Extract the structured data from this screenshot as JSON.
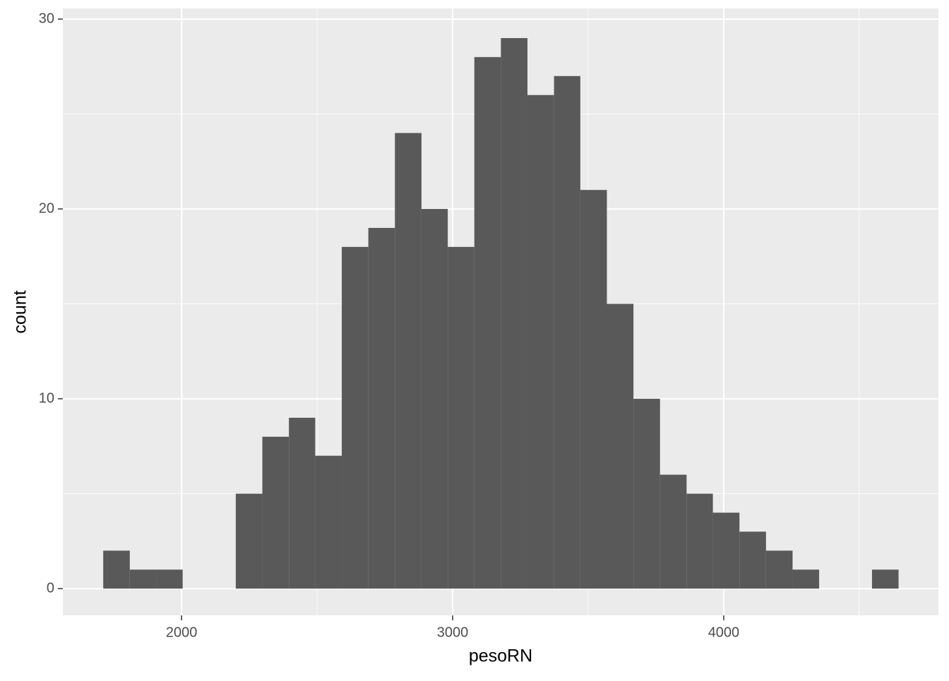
{
  "chart_data": {
    "type": "histogram",
    "x_label": "pesoRN",
    "y_label": "count",
    "bins": [
      1711,
      1809,
      1907,
      2004,
      2102,
      2200,
      2298,
      2396,
      2493,
      2591,
      2689,
      2787,
      2885,
      2982,
      3080,
      3178,
      3276,
      3374,
      3471,
      3569,
      3667,
      3765,
      3863,
      3960,
      4058,
      4156,
      4254,
      4352,
      4449,
      4547,
      4645
    ],
    "values": [
      2,
      1,
      1,
      0,
      0,
      5,
      8,
      9,
      7,
      18,
      19,
      24,
      20,
      18,
      28,
      29,
      26,
      27,
      21,
      15,
      10,
      6,
      5,
      4,
      3,
      2,
      1,
      0,
      0,
      1
    ],
    "color": "#595959",
    "xlim": [
      1562,
      4792
    ],
    "ylim": [
      -1.41,
      30.56
    ],
    "xticks": [
      2000,
      3000,
      4000
    ],
    "yticks": [
      0,
      10,
      20,
      30
    ],
    "xminor": [
      2500,
      3500,
      4500
    ],
    "yminor": [
      5,
      15,
      25
    ],
    "grid": true
  }
}
